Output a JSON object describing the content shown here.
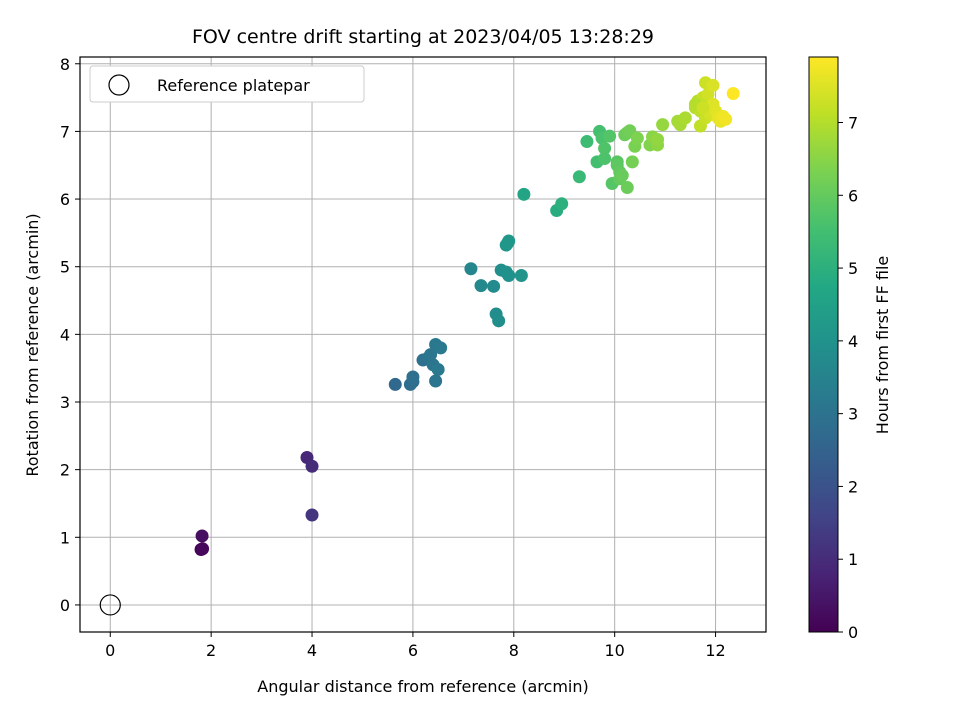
{
  "chart_data": {
    "type": "scatter",
    "title": "FOV centre drift starting at 2023/04/05 13:28:29",
    "xlabel": "Angular distance from reference (arcmin)",
    "ylabel": "Rotation from reference (arcmin)",
    "colorbar_label": "Hours from first FF file",
    "xlim": [
      -0.6,
      13.0
    ],
    "ylim": [
      -0.4,
      8.1
    ],
    "xticks": [
      0,
      2,
      4,
      6,
      8,
      10,
      12
    ],
    "yticks": [
      0,
      1,
      2,
      3,
      4,
      5,
      6,
      7,
      8
    ],
    "colorbar_ticks": [
      0,
      1,
      2,
      3,
      4,
      5,
      6,
      7
    ],
    "colorbar_range": [
      0,
      7.9
    ],
    "grid": true,
    "colormap": "viridis",
    "legend": {
      "position": "top-left",
      "entries": [
        "Reference platepar"
      ]
    },
    "reference_point": {
      "x": 0,
      "y": 0
    },
    "points": [
      {
        "x": 1.8,
        "y": 0.82,
        "h": 0.05
      },
      {
        "x": 1.83,
        "y": 0.83,
        "h": 0.15
      },
      {
        "x": 1.82,
        "y": 1.02,
        "h": 0.3
      },
      {
        "x": 3.9,
        "y": 2.18,
        "h": 0.9
      },
      {
        "x": 4.0,
        "y": 2.05,
        "h": 1.0
      },
      {
        "x": 4.0,
        "y": 1.33,
        "h": 1.2
      },
      {
        "x": 5.65,
        "y": 3.26,
        "h": 2.7
      },
      {
        "x": 5.95,
        "y": 3.26,
        "h": 2.8
      },
      {
        "x": 6.0,
        "y": 3.3,
        "h": 2.85
      },
      {
        "x": 6.0,
        "y": 3.37,
        "h": 2.9
      },
      {
        "x": 6.2,
        "y": 3.62,
        "h": 2.95
      },
      {
        "x": 6.3,
        "y": 3.65,
        "h": 3.0
      },
      {
        "x": 6.35,
        "y": 3.7,
        "h": 3.05
      },
      {
        "x": 6.4,
        "y": 3.55,
        "h": 3.1
      },
      {
        "x": 6.45,
        "y": 3.85,
        "h": 3.15
      },
      {
        "x": 6.55,
        "y": 3.8,
        "h": 3.2
      },
      {
        "x": 6.5,
        "y": 3.48,
        "h": 3.2
      },
      {
        "x": 6.45,
        "y": 3.31,
        "h": 3.1
      },
      {
        "x": 7.15,
        "y": 4.97,
        "h": 3.6
      },
      {
        "x": 7.35,
        "y": 4.72,
        "h": 3.7
      },
      {
        "x": 7.6,
        "y": 4.71,
        "h": 3.75
      },
      {
        "x": 7.65,
        "y": 4.3,
        "h": 3.8
      },
      {
        "x": 7.7,
        "y": 4.2,
        "h": 3.85
      },
      {
        "x": 7.75,
        "y": 4.95,
        "h": 3.9
      },
      {
        "x": 7.85,
        "y": 4.92,
        "h": 3.95
      },
      {
        "x": 7.9,
        "y": 4.87,
        "h": 4.0
      },
      {
        "x": 8.15,
        "y": 4.87,
        "h": 4.05
      },
      {
        "x": 7.85,
        "y": 5.32,
        "h": 4.1
      },
      {
        "x": 7.9,
        "y": 5.38,
        "h": 4.2
      },
      {
        "x": 7.88,
        "y": 5.35,
        "h": 4.15
      },
      {
        "x": 8.2,
        "y": 6.07,
        "h": 4.6
      },
      {
        "x": 8.85,
        "y": 5.83,
        "h": 4.9
      },
      {
        "x": 8.95,
        "y": 5.93,
        "h": 5.0
      },
      {
        "x": 9.3,
        "y": 6.33,
        "h": 5.3
      },
      {
        "x": 9.45,
        "y": 6.85,
        "h": 5.4
      },
      {
        "x": 9.65,
        "y": 6.55,
        "h": 5.5
      },
      {
        "x": 9.7,
        "y": 7.0,
        "h": 5.55
      },
      {
        "x": 9.75,
        "y": 6.9,
        "h": 5.6
      },
      {
        "x": 9.8,
        "y": 6.6,
        "h": 5.65
      },
      {
        "x": 9.8,
        "y": 6.75,
        "h": 5.7
      },
      {
        "x": 9.9,
        "y": 6.93,
        "h": 5.75
      },
      {
        "x": 9.95,
        "y": 6.23,
        "h": 5.8
      },
      {
        "x": 10.05,
        "y": 6.55,
        "h": 5.85
      },
      {
        "x": 10.05,
        "y": 6.5,
        "h": 5.9
      },
      {
        "x": 10.1,
        "y": 6.4,
        "h": 5.95
      },
      {
        "x": 10.1,
        "y": 6.3,
        "h": 6.0
      },
      {
        "x": 10.15,
        "y": 6.35,
        "h": 6.05
      },
      {
        "x": 10.2,
        "y": 6.95,
        "h": 6.1
      },
      {
        "x": 10.25,
        "y": 6.98,
        "h": 6.15
      },
      {
        "x": 10.3,
        "y": 7.01,
        "h": 6.2
      },
      {
        "x": 10.25,
        "y": 6.17,
        "h": 6.1
      },
      {
        "x": 10.35,
        "y": 6.55,
        "h": 6.25
      },
      {
        "x": 10.4,
        "y": 6.78,
        "h": 6.3
      },
      {
        "x": 10.45,
        "y": 6.9,
        "h": 6.35
      },
      {
        "x": 10.7,
        "y": 6.8,
        "h": 6.4
      },
      {
        "x": 10.75,
        "y": 6.92,
        "h": 6.5
      },
      {
        "x": 10.85,
        "y": 6.8,
        "h": 6.55
      },
      {
        "x": 10.85,
        "y": 6.88,
        "h": 6.6
      },
      {
        "x": 10.95,
        "y": 7.1,
        "h": 6.65
      },
      {
        "x": 11.25,
        "y": 7.15,
        "h": 6.8
      },
      {
        "x": 11.3,
        "y": 7.1,
        "h": 6.85
      },
      {
        "x": 11.4,
        "y": 7.2,
        "h": 6.9
      },
      {
        "x": 11.6,
        "y": 7.35,
        "h": 7.0
      },
      {
        "x": 11.65,
        "y": 7.45,
        "h": 7.05
      },
      {
        "x": 11.7,
        "y": 7.3,
        "h": 7.1
      },
      {
        "x": 11.7,
        "y": 7.08,
        "h": 7.15
      },
      {
        "x": 11.75,
        "y": 7.5,
        "h": 7.2
      },
      {
        "x": 11.8,
        "y": 7.2,
        "h": 7.25
      },
      {
        "x": 11.8,
        "y": 7.72,
        "h": 7.3
      },
      {
        "x": 11.85,
        "y": 7.55,
        "h": 7.35
      },
      {
        "x": 11.9,
        "y": 7.25,
        "h": 7.4
      },
      {
        "x": 11.95,
        "y": 7.68,
        "h": 7.45
      },
      {
        "x": 11.95,
        "y": 7.4,
        "h": 7.5
      },
      {
        "x": 12.0,
        "y": 7.3,
        "h": 7.55
      },
      {
        "x": 12.05,
        "y": 7.2,
        "h": 7.6
      },
      {
        "x": 12.1,
        "y": 7.15,
        "h": 7.65
      },
      {
        "x": 12.15,
        "y": 7.22,
        "h": 7.7
      },
      {
        "x": 12.2,
        "y": 7.18,
        "h": 7.75
      },
      {
        "x": 12.35,
        "y": 7.56,
        "h": 7.9
      },
      {
        "x": 11.6,
        "y": 7.4,
        "h": 7.0
      },
      {
        "x": 11.75,
        "y": 7.35,
        "h": 7.3
      }
    ]
  }
}
